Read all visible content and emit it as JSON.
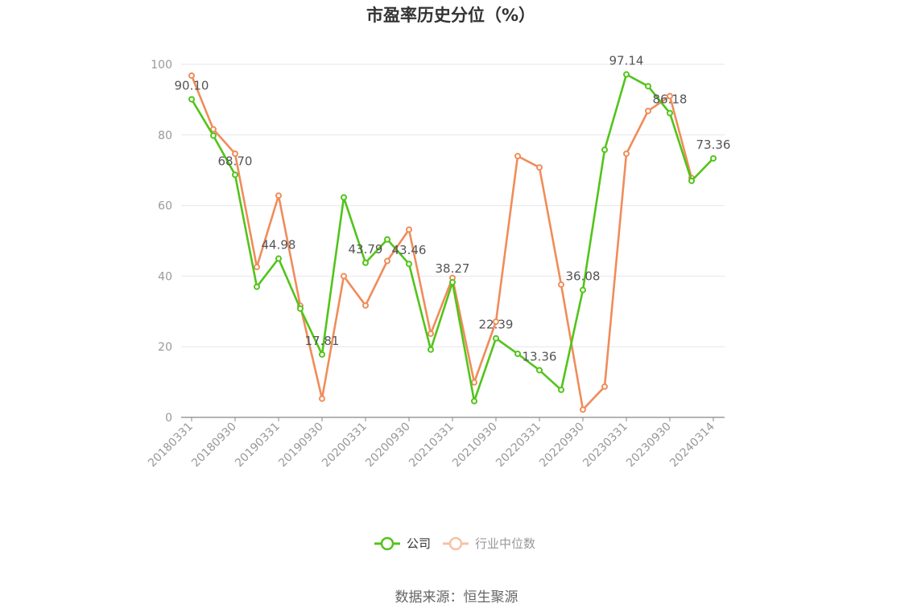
{
  "chart_data": {
    "type": "line",
    "title": "市盈率历史分位（%）",
    "xlabel": "",
    "ylabel": "",
    "ylim": [
      0,
      100
    ],
    "yticks": [
      0,
      20,
      40,
      60,
      80,
      100
    ],
    "x": [
      "20180331",
      "20180630",
      "20180930",
      "20181231",
      "20190331",
      "20190630",
      "20190930",
      "20191231",
      "20200331",
      "20200630",
      "20200930",
      "20201231",
      "20210331",
      "20210630",
      "20210930",
      "20211231",
      "20220331",
      "20220630",
      "20220930",
      "20221231",
      "20230331",
      "20230630",
      "20230930",
      "20231231",
      "20240314"
    ],
    "xticklabels_shown": [
      "20180331",
      "20180930",
      "20190331",
      "20190930",
      "20200331",
      "20200930",
      "20210331",
      "20210930",
      "20220331",
      "20220930",
      "20230331",
      "20230930",
      "20240314"
    ],
    "series": [
      {
        "name": "公司",
        "color": "#52c41a",
        "values": [
          90.1,
          79.8,
          68.7,
          37.0,
          44.98,
          30.8,
          17.81,
          62.3,
          43.79,
          50.4,
          43.46,
          19.2,
          38.27,
          4.6,
          22.39,
          18.0,
          13.36,
          7.8,
          36.08,
          75.8,
          97.14,
          93.8,
          86.18,
          67.0,
          73.36
        ]
      },
      {
        "name": "行业中位数",
        "color": "#f08c5a",
        "values": [
          96.8,
          81.6,
          74.7,
          42.6,
          62.8,
          31.6,
          5.3,
          40.0,
          31.7,
          44.3,
          53.2,
          23.7,
          39.5,
          9.9,
          27.1,
          74.0,
          70.8,
          37.6,
          2.2,
          8.7,
          74.7,
          86.8,
          91.0,
          67.8,
          null
        ]
      }
    ],
    "data_labels": [
      {
        "index": 0,
        "text": "90.10"
      },
      {
        "index": 2,
        "text": "68.70"
      },
      {
        "index": 4,
        "text": "44.98"
      },
      {
        "index": 6,
        "text": "17.81"
      },
      {
        "index": 8,
        "text": "43.79"
      },
      {
        "index": 10,
        "text": "43.46"
      },
      {
        "index": 12,
        "text": "38.27"
      },
      {
        "index": 14,
        "text": "22.39"
      },
      {
        "index": 16,
        "text": "13.36"
      },
      {
        "index": 18,
        "text": "36.08"
      },
      {
        "index": 20,
        "text": "97.14"
      },
      {
        "index": 22,
        "text": "86.18"
      },
      {
        "index": 24,
        "text": "73.36"
      }
    ],
    "grid": true,
    "legend_position": "bottom"
  },
  "source": "数据来源：恒生聚源"
}
